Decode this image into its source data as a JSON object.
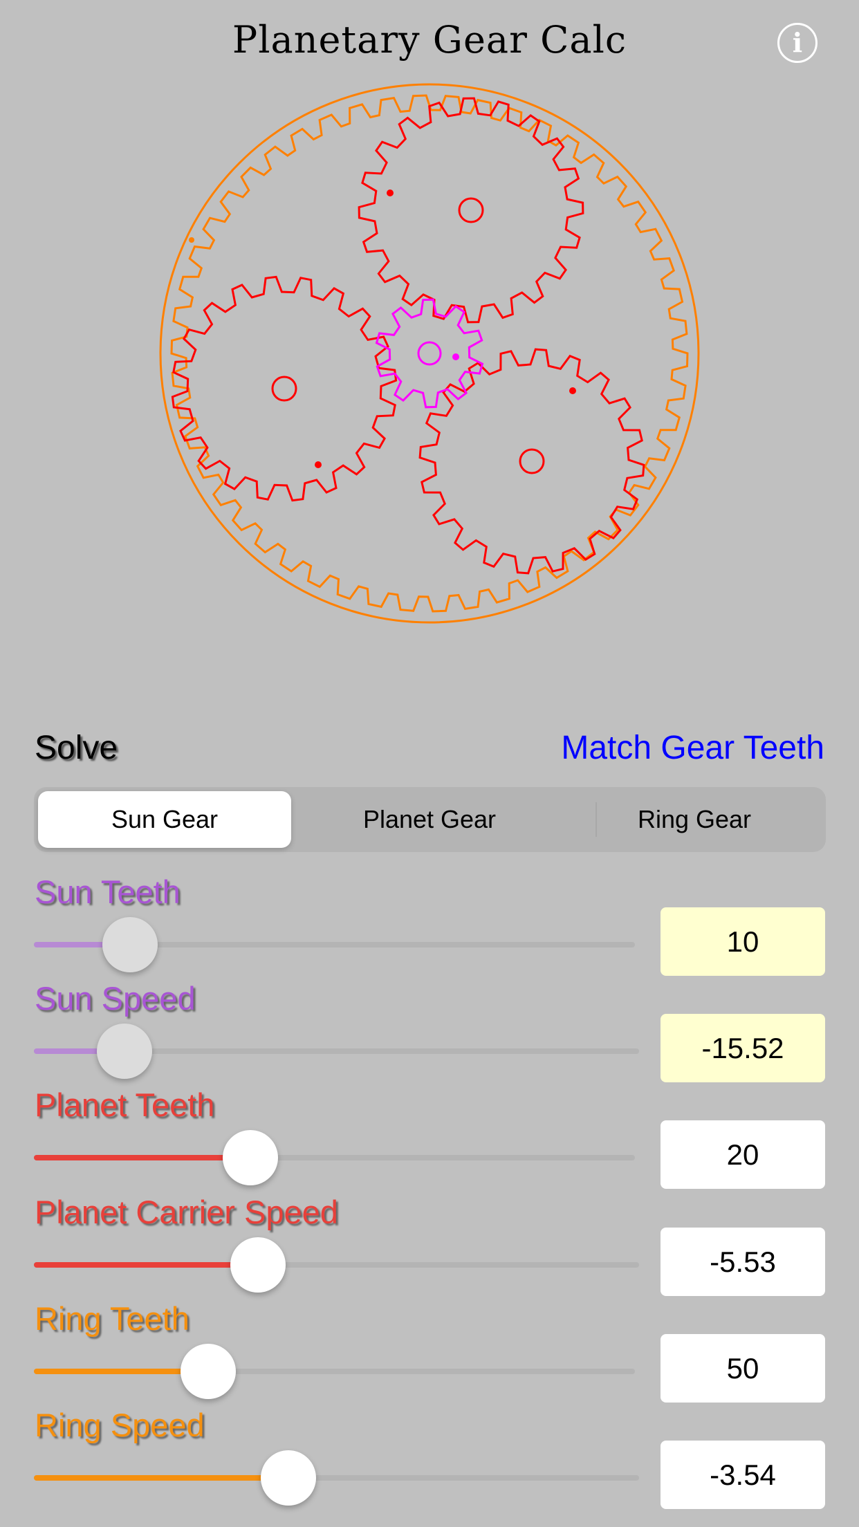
{
  "header": {
    "title": "Planetary Gear Calc",
    "info_icon": "info-icon"
  },
  "colors": {
    "sun": "#ff00ff",
    "planet": "#ff0000",
    "ring": "#ff8000",
    "sun_label": "#a855d4",
    "sun_slider": "#b78ad4",
    "planet_label": "#e8403a",
    "ring_label": "#f5900f",
    "link": "#0000ff"
  },
  "gears": {
    "sun_teeth": 10,
    "planet_teeth": 20,
    "ring_teeth": 50,
    "planet_count": 3
  },
  "solve": {
    "label": "Solve",
    "match_button": "Match Gear Teeth"
  },
  "segments": [
    {
      "label": "Sun Gear",
      "selected": true
    },
    {
      "label": "Planet Gear",
      "selected": false
    },
    {
      "label": "Ring Gear",
      "selected": false
    }
  ],
  "rows": [
    {
      "label": "Sun Teeth",
      "value": "10",
      "slider_fraction": 0.16,
      "group": "sun",
      "solved": true
    },
    {
      "label": "Sun Speed",
      "value": "-15.52",
      "slider_fraction": 0.15,
      "group": "sun",
      "solved": true
    },
    {
      "label": "Planet Teeth",
      "value": "20",
      "slider_fraction": 0.36,
      "group": "planet",
      "solved": false
    },
    {
      "label": "Planet Carrier Speed",
      "value": "-5.53",
      "slider_fraction": 0.37,
      "group": "planet",
      "solved": false
    },
    {
      "label": "Ring Teeth",
      "value": "50",
      "slider_fraction": 0.29,
      "group": "ring",
      "solved": false
    },
    {
      "label": "Ring Speed",
      "value": "-3.54",
      "slider_fraction": 0.42,
      "group": "ring",
      "solved": false
    }
  ]
}
